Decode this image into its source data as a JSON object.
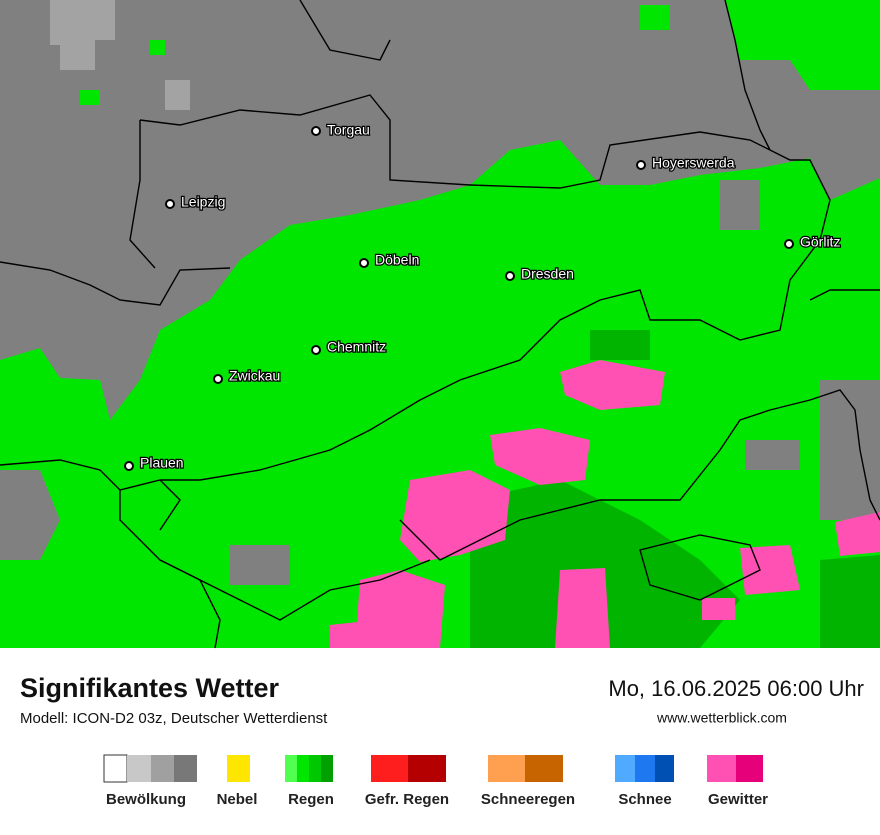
{
  "map": {
    "cities": [
      "Torgau",
      "Leipzig",
      "Döbeln",
      "Dresden",
      "Hoyerswerda",
      "Görlitz",
      "Chemnitz",
      "Zwickau",
      "Plauen"
    ]
  },
  "footer": {
    "title": "Signifikantes Wetter",
    "model": "Modell: ICON-D2 03z, Deutscher Wetterdienst",
    "datetime": "Mo, 16.06.2025 06:00 Uhr",
    "website": "www.wetterblick.com"
  },
  "legend": [
    "Bewölkung",
    "Nebel",
    "Regen",
    "Gefr. Regen",
    "Schneeregen",
    "Schnee",
    "Gewitter"
  ]
}
